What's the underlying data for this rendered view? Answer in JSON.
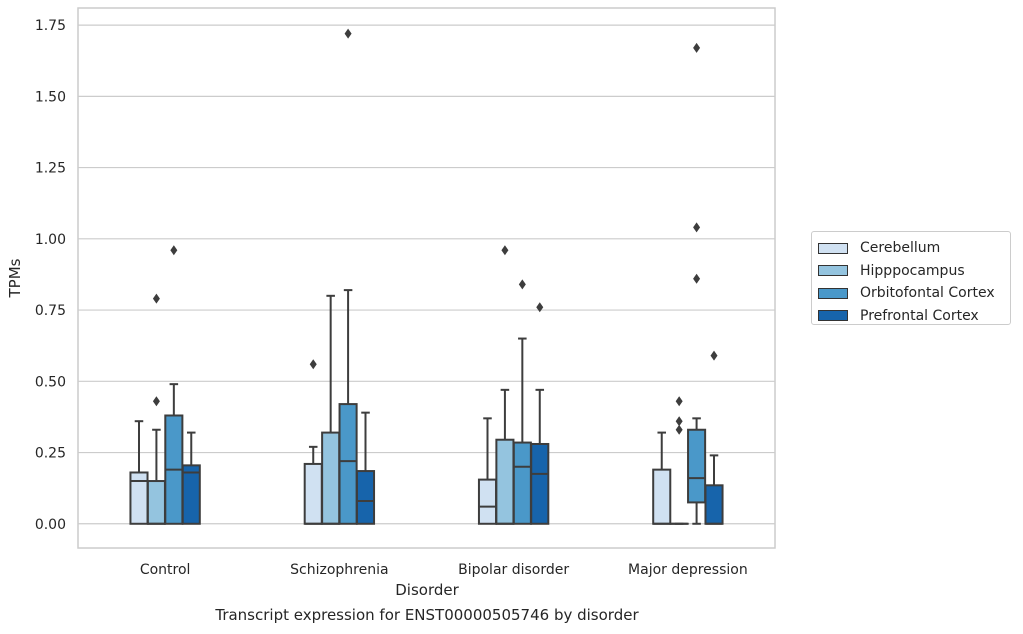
{
  "chart_data": {
    "type": "box",
    "xlabel": "Disorder",
    "ylabel": "TPMs",
    "caption": "Transcript expression for ENST00000505746 by disorder",
    "categories": [
      "Control",
      "Schizophrenia",
      "Bipolar disorder",
      "Major depression"
    ],
    "ylim": [
      -0.085,
      1.81
    ],
    "yticks": [
      0.0,
      0.25,
      0.5,
      0.75,
      1.0,
      1.25,
      1.5,
      1.75
    ],
    "ytick_labels": [
      "0.00",
      "0.25",
      "0.50",
      "0.75",
      "1.00",
      "1.25",
      "1.50",
      "1.75"
    ],
    "grid": true,
    "legend_position": "right",
    "series": [
      {
        "name": "Cerebellum",
        "color": "#d0e1f2",
        "boxes": [
          {
            "min": 0.0,
            "q1": 0.0,
            "median": 0.15,
            "q3": 0.18,
            "max": 0.36,
            "outliers": []
          },
          {
            "min": 0.0,
            "q1": 0.0,
            "median": 0.0,
            "q3": 0.21,
            "max": 0.27,
            "outliers": [
              0.56
            ]
          },
          {
            "min": 0.0,
            "q1": 0.0,
            "median": 0.06,
            "q3": 0.155,
            "max": 0.37,
            "outliers": []
          },
          {
            "min": 0.0,
            "q1": 0.0,
            "median": 0.0,
            "q3": 0.19,
            "max": 0.32,
            "outliers": []
          }
        ]
      },
      {
        "name": "Hipppocampus",
        "color": "#94c4df",
        "boxes": [
          {
            "min": 0.0,
            "q1": 0.0,
            "median": 0.0,
            "q3": 0.15,
            "max": 0.33,
            "outliers": [
              0.43,
              0.79
            ]
          },
          {
            "min": 0.0,
            "q1": 0.0,
            "median": 0.0,
            "q3": 0.32,
            "max": 0.8,
            "outliers": []
          },
          {
            "min": 0.0,
            "q1": 0.0,
            "median": 0.0,
            "q3": 0.295,
            "max": 0.47,
            "outliers": [
              0.96
            ]
          },
          {
            "min": 0.0,
            "q1": 0.0,
            "median": 0.0,
            "q3": 0.0,
            "max": 0.0,
            "outliers": [
              0.33,
              0.36,
              0.43
            ]
          }
        ]
      },
      {
        "name": "Orbitofontal Cortex",
        "color": "#4a98c9",
        "boxes": [
          {
            "min": 0.0,
            "q1": 0.0,
            "median": 0.19,
            "q3": 0.38,
            "max": 0.49,
            "outliers": [
              0.96
            ]
          },
          {
            "min": 0.0,
            "q1": 0.0,
            "median": 0.22,
            "q3": 0.42,
            "max": 0.82,
            "outliers": [
              1.72
            ]
          },
          {
            "min": 0.0,
            "q1": 0.0,
            "median": 0.2,
            "q3": 0.285,
            "max": 0.65,
            "outliers": [
              0.84
            ]
          },
          {
            "min": 0.0,
            "q1": 0.075,
            "median": 0.16,
            "q3": 0.33,
            "max": 0.37,
            "outliers": [
              0.86,
              1.04,
              1.67
            ]
          }
        ]
      },
      {
        "name": "Prefrontal Cortex",
        "color": "#1764ab",
        "boxes": [
          {
            "min": 0.0,
            "q1": 0.0,
            "median": 0.18,
            "q3": 0.205,
            "max": 0.32,
            "outliers": []
          },
          {
            "min": 0.0,
            "q1": 0.0,
            "median": 0.08,
            "q3": 0.185,
            "max": 0.39,
            "outliers": []
          },
          {
            "min": 0.0,
            "q1": 0.0,
            "median": 0.175,
            "q3": 0.28,
            "max": 0.47,
            "outliers": [
              0.76
            ]
          },
          {
            "min": 0.0,
            "q1": 0.0,
            "median": 0.0,
            "q3": 0.135,
            "max": 0.24,
            "outliers": [
              0.59
            ]
          }
        ]
      }
    ]
  }
}
